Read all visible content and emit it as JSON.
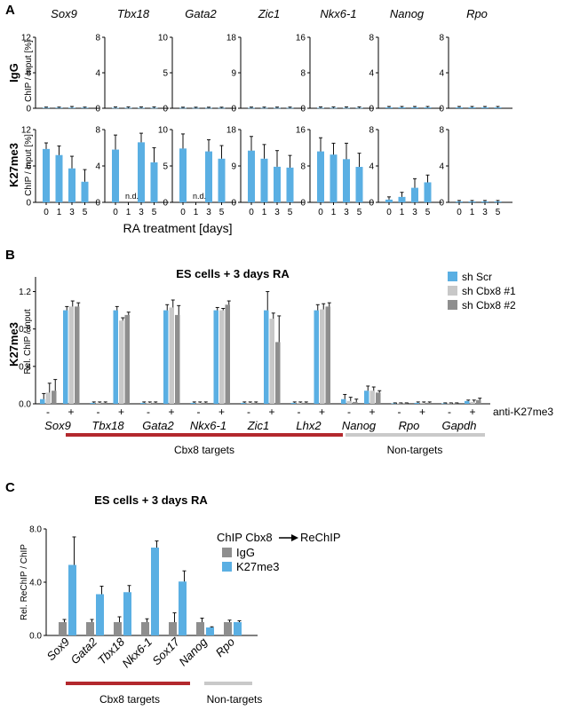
{
  "colors": {
    "blue": "#5aafe3",
    "light_gray": "#c8c8c8",
    "dark_gray": "#8e8e8e",
    "red_bar": "#b3282d",
    "gray_bar": "#c9c9c9",
    "error": "#111111"
  },
  "panel_letters": {
    "a": "A",
    "b": "B",
    "c": "C"
  },
  "chart_data": [
    {
      "id": "A",
      "type": "bar",
      "row_labels": [
        "IgG",
        "K27me3"
      ],
      "ylabel": "ChIP / Input [%]",
      "xlabel": "RA treatment [days]",
      "categories": [
        "0",
        "1",
        "3",
        "5"
      ],
      "nd_label": "n.d.",
      "genes": [
        {
          "name": "Sox9",
          "ylim": [
            0,
            12
          ],
          "ticks": [
            0,
            6,
            12
          ],
          "igg": [
            0.1,
            0.1,
            0.1,
            0.1
          ],
          "igg_err": [
            0.1,
            0.1,
            0.2,
            0.1
          ],
          "k27": [
            8.8,
            7.8,
            5.6,
            3.4
          ],
          "k27_err": [
            1.0,
            1.5,
            2.0,
            2.0
          ],
          "nd": false
        },
        {
          "name": "Tbx18",
          "ylim": [
            0,
            8
          ],
          "ticks": [
            0,
            4,
            8
          ],
          "igg": [
            0.05,
            0.05,
            0.05,
            0.05
          ],
          "igg_err": [
            0.1,
            0.1,
            0.1,
            0.1
          ],
          "k27": [
            5.8,
            0,
            6.6,
            4.4
          ],
          "k27_err": [
            1.6,
            0,
            1.0,
            1.6
          ],
          "nd": true
        },
        {
          "name": "Gata2",
          "ylim": [
            0,
            10
          ],
          "ticks": [
            0,
            5,
            10
          ],
          "igg": [
            0.05,
            0.05,
            0.05,
            0.05
          ],
          "igg_err": [
            0.1,
            0.1,
            0.1,
            0.1
          ],
          "k27": [
            7.4,
            0,
            7.0,
            6.0
          ],
          "k27_err": [
            2.0,
            0,
            1.6,
            1.8
          ],
          "nd": true
        },
        {
          "name": "Zic1",
          "ylim": [
            0,
            18
          ],
          "ticks": [
            0,
            9,
            18
          ],
          "igg": [
            0.1,
            0.1,
            0.1,
            0.1
          ],
          "igg_err": [
            0.2,
            0.2,
            0.2,
            0.2
          ],
          "k27": [
            12.8,
            10.8,
            8.8,
            8.6
          ],
          "k27_err": [
            3.5,
            3.5,
            4.0,
            3.0
          ],
          "nd": false
        },
        {
          "name": "Nkx6-1",
          "ylim": [
            0,
            16
          ],
          "ticks": [
            0,
            8,
            16
          ],
          "igg": [
            0.1,
            0.1,
            0.1,
            0.1
          ],
          "igg_err": [
            0.2,
            0.2,
            0.2,
            0.2
          ],
          "k27": [
            11.2,
            10.5,
            9.5,
            7.8
          ],
          "k27_err": [
            3.0,
            2.5,
            3.5,
            3.0
          ],
          "nd": false
        },
        {
          "name": "Nanog",
          "ylim": [
            0,
            8
          ],
          "ticks": [
            0,
            4,
            8
          ],
          "igg": [
            0.1,
            0.1,
            0.1,
            0.1
          ],
          "igg_err": [
            0.1,
            0.1,
            0.1,
            0.1
          ],
          "k27": [
            0.3,
            0.6,
            1.6,
            2.2
          ],
          "k27_err": [
            0.3,
            0.5,
            1.0,
            0.8
          ],
          "nd": false
        },
        {
          "name": "Rpo",
          "ylim": [
            0,
            8
          ],
          "ticks": [
            0,
            4,
            8
          ],
          "igg": [
            0.1,
            0.1,
            0.1,
            0.1
          ],
          "igg_err": [
            0.1,
            0.1,
            0.1,
            0.1
          ],
          "k27": [
            0.1,
            0.1,
            0.1,
            0.1
          ],
          "k27_err": [
            0.1,
            0.1,
            0.1,
            0.1
          ],
          "nd": false
        }
      ]
    },
    {
      "id": "B",
      "type": "bar",
      "title": "ES cells + 3 days RA",
      "row_label": "K27me3",
      "ylabel": "Rel. ChIP / Input",
      "ylim": [
        0,
        1.3
      ],
      "ticks": [
        "0.0",
        "0.4",
        "0.8",
        "1.2"
      ],
      "tick_values": [
        0,
        0.4,
        0.8,
        1.2
      ],
      "legend_placement": "top-right",
      "series": [
        {
          "name": "sh Scr"
        },
        {
          "name": "sh Cbx8 #1"
        },
        {
          "name": "sh Cbx8 #2"
        }
      ],
      "antibody_signs": [
        "-",
        "+"
      ],
      "antibody_label": "anti-K27me3",
      "groups": [
        {
          "gene": "Sox9",
          "minus": [
            0.05,
            0.12,
            0.14
          ],
          "minus_err": [
            0.06,
            0.1,
            0.12
          ],
          "plus": [
            1.0,
            1.04,
            1.04
          ],
          "plus_err": [
            0.04,
            0.06,
            0.04
          ]
        },
        {
          "gene": "Tbx18",
          "minus": [
            0.01,
            0.01,
            0.01
          ],
          "minus_err": [
            0.01,
            0.01,
            0.01
          ],
          "plus": [
            1.0,
            0.89,
            0.95
          ],
          "plus_err": [
            0.04,
            0.03,
            0.03
          ]
        },
        {
          "gene": "Gata2",
          "minus": [
            0.01,
            0.01,
            0.01
          ],
          "minus_err": [
            0.01,
            0.01,
            0.01
          ],
          "plus": [
            1.0,
            1.03,
            0.95
          ],
          "plus_err": [
            0.06,
            0.08,
            0.1
          ]
        },
        {
          "gene": "Nkx6-1",
          "minus": [
            0.01,
            0.01,
            0.01
          ],
          "minus_err": [
            0.01,
            0.01,
            0.01
          ],
          "plus": [
            1.0,
            1.0,
            1.06
          ],
          "plus_err": [
            0.03,
            0.02,
            0.04
          ]
        },
        {
          "gene": "Zic1",
          "minus": [
            0.01,
            0.01,
            0.01
          ],
          "minus_err": [
            0.01,
            0.01,
            0.01
          ],
          "plus": [
            1.0,
            0.91,
            0.66
          ],
          "plus_err": [
            0.2,
            0.06,
            0.28
          ]
        },
        {
          "gene": "Lhx2",
          "minus": [
            0.01,
            0.01,
            0.01
          ],
          "minus_err": [
            0.01,
            0.01,
            0.01
          ],
          "plus": [
            1.0,
            1.01,
            1.04
          ],
          "plus_err": [
            0.06,
            0.06,
            0.04
          ]
        },
        {
          "gene": "Nanog",
          "minus": [
            0.05,
            0.03,
            0.02
          ],
          "minus_err": [
            0.05,
            0.04,
            0.03
          ],
          "plus": [
            0.14,
            0.14,
            0.12
          ],
          "plus_err": [
            0.05,
            0.04,
            0.02
          ]
        },
        {
          "gene": "Rpo",
          "minus": [
            0.005,
            0.005,
            0.005
          ],
          "minus_err": [
            0.005,
            0.005,
            0.005
          ],
          "plus": [
            0.01,
            0.01,
            0.01
          ],
          "plus_err": [
            0.01,
            0.01,
            0.01
          ]
        },
        {
          "gene": "Gapdh",
          "minus": [
            0.005,
            0.005,
            0.005
          ],
          "minus_err": [
            0.005,
            0.005,
            0.005
          ],
          "plus": [
            0.03,
            0.02,
            0.04
          ],
          "plus_err": [
            0.01,
            0.02,
            0.02
          ]
        }
      ],
      "target_label": "Cbx8 targets",
      "nontarget_label": "Non-targets"
    },
    {
      "id": "C",
      "type": "bar",
      "title": "ES cells + 3 days RA",
      "ylabel": "Rel. ReChIP / ChIP",
      "ylim": [
        0,
        8
      ],
      "ticks": [
        "0.0",
        "4.0",
        "8.0"
      ],
      "tick_values": [
        0,
        4,
        8
      ],
      "legend_title": "ChIP Cbx8",
      "legend_title_2": "ReChIP",
      "series": [
        {
          "name": "IgG"
        },
        {
          "name": "K27me3"
        }
      ],
      "groups": [
        {
          "gene": "Sox9",
          "igg": 1.0,
          "igg_err": 0.2,
          "k27": 5.3,
          "k27_err": 2.1
        },
        {
          "gene": "Gata2",
          "igg": 1.0,
          "igg_err": 0.2,
          "k27": 3.1,
          "k27_err": 0.6
        },
        {
          "gene": "Tbx18",
          "igg": 1.0,
          "igg_err": 0.4,
          "k27": 3.25,
          "k27_err": 0.5
        },
        {
          "gene": "Nkx6-1",
          "igg": 1.0,
          "igg_err": 0.25,
          "k27": 6.6,
          "k27_err": 0.5
        },
        {
          "gene": "Sox17",
          "igg": 1.0,
          "igg_err": 0.7,
          "k27": 4.05,
          "k27_err": 0.8
        },
        {
          "gene": "Nanog",
          "igg": 1.0,
          "igg_err": 0.3,
          "k27": 0.6,
          "k27_err": 0.05
        },
        {
          "gene": "Rpo",
          "igg": 1.0,
          "igg_err": 0.15,
          "k27": 1.0,
          "k27_err": 0.1
        }
      ],
      "target_label": "Cbx8 targets",
      "nontarget_label": "Non-targets"
    }
  ]
}
